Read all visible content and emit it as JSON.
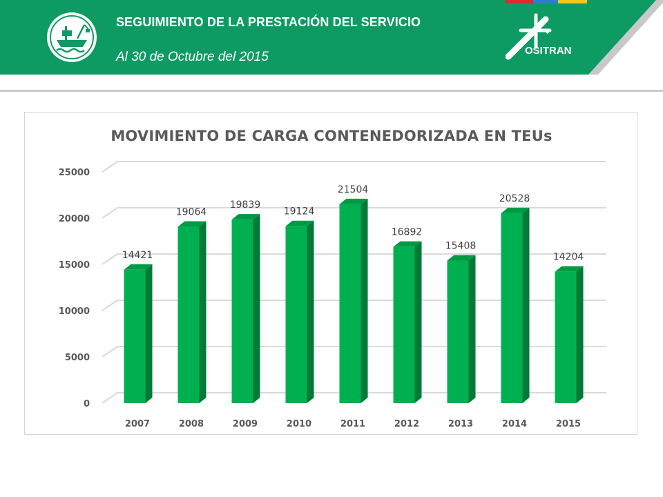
{
  "header": {
    "title": "SEGUIMIENTO DE LA PRESTACIÓN DEL SERVICIO",
    "subtitle": "Al 30 de Octubre del 2015",
    "brand": "OSITRAN",
    "colors": {
      "band": "#0d9b63",
      "accent_red": "#e3262f",
      "accent_blue": "#2a7fd0",
      "accent_yellow": "#f5c518",
      "stripe": "#c8c8c8"
    },
    "icons": [
      "ship-port-logo-icon",
      "ositran-mark-icon"
    ]
  },
  "chart_data": {
    "type": "bar",
    "title": "MOVIMIENTO DE CARGA CONTENEDORIZADA  EN TEUs",
    "categories": [
      "2007",
      "2008",
      "2009",
      "2010",
      "2011",
      "2012",
      "2013",
      "2014",
      "2015"
    ],
    "values": [
      14421,
      19064,
      19839,
      19124,
      21504,
      16892,
      15408,
      20528,
      14204
    ],
    "data_labels": [
      "14421",
      "19064",
      "19839",
      "19124",
      "21504",
      "16892",
      "15408",
      "20528",
      "14204"
    ],
    "y_ticks": [
      0,
      5000,
      10000,
      15000,
      20000,
      25000
    ],
    "y_tick_labels": [
      "0",
      "5000",
      "10000",
      "15000",
      "20000",
      "25000"
    ],
    "ylim": [
      0,
      25000
    ],
    "grid": true,
    "legend": "none",
    "style": "3d-columns",
    "colors": {
      "bar_front": "#00b050",
      "bar_side": "#007a37",
      "bar_top": "#009a45",
      "grid": "#d9d9d9"
    }
  }
}
